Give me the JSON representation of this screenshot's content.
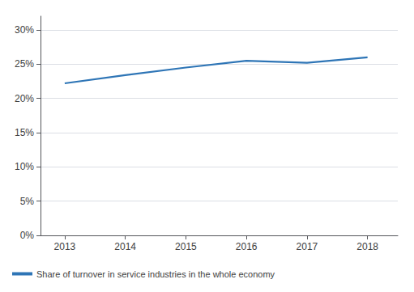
{
  "chart_data": {
    "type": "line",
    "x": [
      2013,
      2014,
      2015,
      2016,
      2017,
      2018
    ],
    "series": [
      {
        "name": "Share of turnover in service industries in the whole economy",
        "color": "#2e75b6",
        "values": [
          0.222,
          0.234,
          0.245,
          0.255,
          0.252,
          0.26
        ]
      }
    ],
    "xlim": [
      2012.6,
      2018.5
    ],
    "xticks": [
      2013,
      2014,
      2015,
      2016,
      2017,
      2018
    ],
    "ylim": [
      0,
      0.32
    ],
    "yticks": [
      {
        "value": 0.0,
        "label": "0%"
      },
      {
        "value": 0.05,
        "label": "5%"
      },
      {
        "value": 0.1,
        "label": "10%"
      },
      {
        "value": 0.15,
        "label": "15%"
      },
      {
        "value": 0.2,
        "label": "20%"
      },
      {
        "value": 0.25,
        "label": "25%"
      },
      {
        "value": 0.3,
        "label": "30%"
      }
    ],
    "grid": true,
    "legend": "lower left"
  }
}
